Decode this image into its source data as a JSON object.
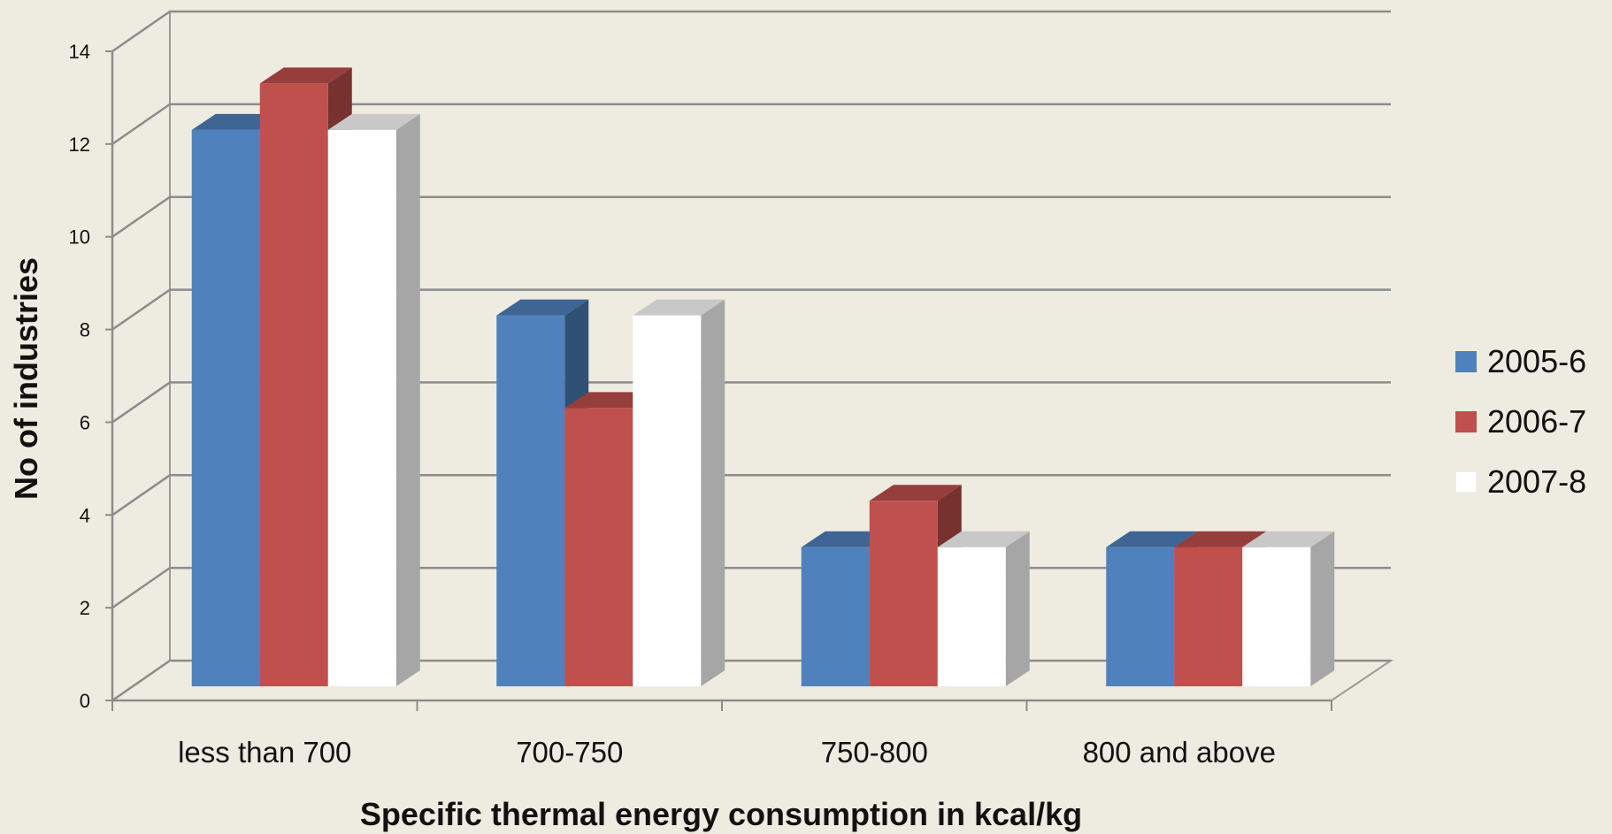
{
  "chart_data": {
    "type": "bar",
    "title": "",
    "xlabel": "Specific thermal energy consumption in kcal/kg",
    "ylabel": "No of industries",
    "categories": [
      "less than 700",
      "700-750",
      "750-800",
      "800 and above"
    ],
    "series": [
      {
        "name": "2005-6",
        "values": [
          12,
          8,
          3,
          3
        ],
        "color": "#4f81bd"
      },
      {
        "name": "2006-7",
        "values": [
          13,
          6,
          4,
          3
        ],
        "color": "#c0504d"
      },
      {
        "name": "2007-8",
        "values": [
          12,
          8,
          3,
          3
        ],
        "color": "#ffffff"
      }
    ],
    "ylim": [
      0,
      14
    ],
    "yticks": [
      0,
      2,
      4,
      6,
      8,
      10,
      12,
      14
    ],
    "grid": true,
    "style": "3d-clustered-column",
    "legend_position": "right"
  }
}
